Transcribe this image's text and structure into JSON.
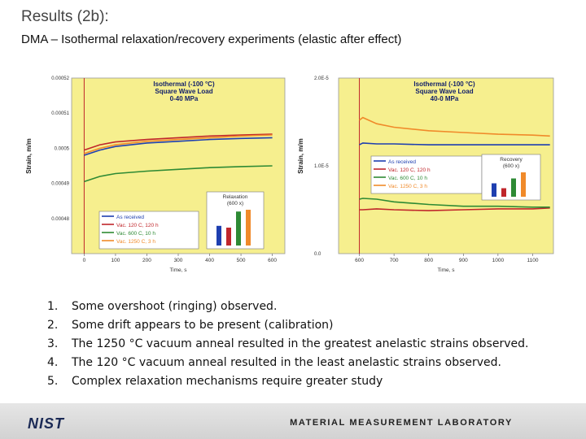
{
  "slide": {
    "title": "Results (2b):",
    "subtitle": "DMA – Isothermal relaxation/recovery experiments (elastic after effect)"
  },
  "chart_data": [
    {
      "type": "line",
      "title": "Isothermal (-100 °C) Square Wave Load 0-40 MPa",
      "title_lines": [
        "Isothermal (-100 °C)",
        "Square Wave Load",
        "0-40 MPa"
      ],
      "xlabel": "Time, s",
      "ylabel": "Strain, m/m",
      "xlim": [
        -40,
        640
      ],
      "ylim": [
        0.00047,
        0.00052
      ],
      "x_ticks": [
        0,
        100,
        200,
        300,
        400,
        500,
        600
      ],
      "x_tick_labels": [
        "0",
        "100",
        "200",
        "300",
        "400",
        "500",
        "600"
      ],
      "y_ticks": [
        0.00048,
        0.00049,
        0.0005,
        0.00051,
        0.00052
      ],
      "y_tick_labels": [
        "0.00048",
        "0.00049",
        "0.0005",
        "0.00051",
        "0.00052"
      ],
      "background": "#f6ef8e",
      "legend_position": "bottom-left",
      "series": [
        {
          "name": "As received",
          "color": "#1e3fb0",
          "x": [
            0,
            50,
            100,
            200,
            300,
            400,
            500,
            600
          ],
          "y": [
            0.000498,
            0.0004995,
            0.0005005,
            0.0005015,
            0.000502,
            0.0005025,
            0.0005028,
            0.000503
          ]
        },
        {
          "name": "Vac. 120 C, 120 h",
          "color": "#c0262b",
          "x": [
            0,
            50,
            100,
            200,
            300,
            400,
            500,
            600
          ],
          "y": [
            0.0004995,
            0.000501,
            0.0005018,
            0.0005025,
            0.000503,
            0.0005035,
            0.0005038,
            0.000504
          ]
        },
        {
          "name": "Vac. 600 C, 10 h",
          "color": "#2e8a34",
          "x": [
            0,
            50,
            100,
            200,
            300,
            400,
            500,
            600
          ],
          "y": [
            0.0004905,
            0.000492,
            0.0004928,
            0.0004935,
            0.000494,
            0.0004945,
            0.0004948,
            0.000495
          ]
        },
        {
          "name": "Vac. 1250 C, 3 h",
          "color": "#f08a2a",
          "x": [
            0,
            50,
            100,
            200,
            300,
            400,
            500,
            600
          ],
          "y": [
            0.0004985,
            0.0005,
            0.000501,
            0.000502,
            0.0005025,
            0.000503,
            0.0005035,
            0.0005038
          ]
        }
      ],
      "inset": {
        "title": [
          "Relaxation",
          "(600 x)"
        ],
        "values": [
          0.55,
          0.5,
          0.95,
          1.0
        ]
      }
    },
    {
      "type": "line",
      "title": "Isothermal (-100 °C) Square Wave Load 40-0 MPa",
      "title_lines": [
        "Isothermal (-100 °C)",
        "Square Wave Load",
        "40-0 MPa"
      ],
      "xlabel": "Time, s",
      "ylabel": "Strain, m/m",
      "xlim": [
        540,
        1160
      ],
      "ylim": [
        0,
        2e-05
      ],
      "x_ticks": [
        600,
        700,
        800,
        900,
        1000,
        1100
      ],
      "x_tick_labels": [
        "600",
        "700",
        "800",
        "900",
        "1000",
        "1100"
      ],
      "y_ticks": [
        0,
        1e-05,
        2e-05
      ],
      "y_tick_labels": [
        "0.0",
        "1.0E-5",
        "2.0E-5"
      ],
      "background": "#f6ef8e",
      "legend_position": "bottom-right",
      "series": [
        {
          "name": "As received",
          "color": "#1e3fb0",
          "x": [
            600,
            610,
            650,
            700,
            800,
            900,
            1000,
            1100,
            1150
          ],
          "y": [
            1.24e-05,
            1.26e-05,
            1.25e-05,
            1.25e-05,
            1.24e-05,
            1.24e-05,
            1.24e-05,
            1.24e-05,
            1.24e-05
          ]
        },
        {
          "name": "Vac. 120 C, 120 h",
          "color": "#c0262b",
          "x": [
            600,
            610,
            650,
            700,
            800,
            900,
            1000,
            1100,
            1150
          ],
          "y": [
            5e-06,
            5e-06,
            5.1e-06,
            5e-06,
            4.9e-06,
            5e-06,
            5.1e-06,
            5.1e-06,
            5.2e-06
          ]
        },
        {
          "name": "Vac. 600 C, 10 h",
          "color": "#2e8a34",
          "x": [
            600,
            610,
            650,
            700,
            800,
            900,
            1000,
            1100,
            1150
          ],
          "y": [
            6.2e-06,
            6.3e-06,
            6.2e-06,
            5.9e-06,
            5.6e-06,
            5.4e-06,
            5.4e-06,
            5.3e-06,
            5.3e-06
          ]
        },
        {
          "name": "Vac. 1250 C, 3 h",
          "color": "#f08a2a",
          "x": [
            600,
            610,
            650,
            700,
            800,
            900,
            1000,
            1100,
            1150
          ],
          "y": [
            1.52e-05,
            1.55e-05,
            1.48e-05,
            1.44e-05,
            1.4e-05,
            1.38e-05,
            1.36e-05,
            1.35e-05,
            1.34e-05
          ]
        }
      ],
      "inset": {
        "title": [
          "Recovery",
          "(600 x)"
        ],
        "values": [
          0.55,
          0.35,
          0.75,
          1.0
        ]
      }
    }
  ],
  "notes": [
    {
      "num": "1.",
      "text": "Some overshoot (ringing) observed."
    },
    {
      "num": "2.",
      "text": "Some drift appears to be present (calibration)"
    },
    {
      "num": "3.",
      "text": "The 1250 °C vacuum anneal resulted in the greatest anelastic strains observed."
    },
    {
      "num": "4.",
      "text": "The 120 °C vacuum anneal resulted in the least anelastic strains observed."
    },
    {
      "num": "5.",
      "text": "Complex relaxation mechanisms require greater study"
    }
  ],
  "footer": {
    "logo_text": "NIST",
    "lab_name": "MATERIAL MEASUREMENT LABORATORY",
    "background": "#dcdcdc"
  }
}
